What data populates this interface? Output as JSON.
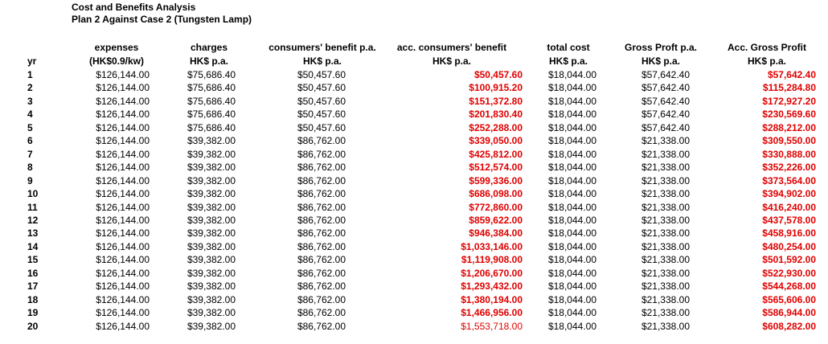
{
  "title": "Cost and Benefits Analysis",
  "subtitle": "Plan 2 Against Case 2 (Tungsten Lamp)",
  "headers": {
    "line1": [
      "",
      "expenses",
      "charges",
      "consumers' benefit p.a.",
      "acc. consumers' benefit",
      "total cost",
      "Gross Proft p.a.",
      "Acc. Gross Profit"
    ],
    "line2": [
      "yr",
      "(HK$0.9/kw)",
      "HK$ p.a.",
      "HK$ p.a.",
      "HK$ p.a.",
      "HK$ p.a.",
      "HK$ p.a.",
      "HK$ p.a."
    ]
  },
  "colors": {
    "highlight": "#e00000",
    "text": "#000000"
  },
  "rows": [
    [
      "1",
      "$126,144.00",
      "$75,686.40",
      "$50,457.60",
      "$50,457.60",
      "$18,044.00",
      "$57,642.40",
      "$57,642.40"
    ],
    [
      "2",
      "$126,144.00",
      "$75,686.40",
      "$50,457.60",
      "$100,915.20",
      "$18,044.00",
      "$57,642.40",
      "$115,284.80"
    ],
    [
      "3",
      "$126,144.00",
      "$75,686.40",
      "$50,457.60",
      "$151,372.80",
      "$18,044.00",
      "$57,642.40",
      "$172,927.20"
    ],
    [
      "4",
      "$126,144.00",
      "$75,686.40",
      "$50,457.60",
      "$201,830.40",
      "$18,044.00",
      "$57,642.40",
      "$230,569.60"
    ],
    [
      "5",
      "$126,144.00",
      "$75,686.40",
      "$50,457.60",
      "$252,288.00",
      "$18,044.00",
      "$57,642.40",
      "$288,212.00"
    ],
    [
      "6",
      "$126,144.00",
      "$39,382.00",
      "$86,762.00",
      "$339,050.00",
      "$18,044.00",
      "$21,338.00",
      "$309,550.00"
    ],
    [
      "7",
      "$126,144.00",
      "$39,382.00",
      "$86,762.00",
      "$425,812.00",
      "$18,044.00",
      "$21,338.00",
      "$330,888.00"
    ],
    [
      "8",
      "$126,144.00",
      "$39,382.00",
      "$86,762.00",
      "$512,574.00",
      "$18,044.00",
      "$21,338.00",
      "$352,226.00"
    ],
    [
      "9",
      "$126,144.00",
      "$39,382.00",
      "$86,762.00",
      "$599,336.00",
      "$18,044.00",
      "$21,338.00",
      "$373,564.00"
    ],
    [
      "10",
      "$126,144.00",
      "$39,382.00",
      "$86,762.00",
      "$686,098.00",
      "$18,044.00",
      "$21,338.00",
      "$394,902.00"
    ],
    [
      "11",
      "$126,144.00",
      "$39,382.00",
      "$86,762.00",
      "$772,860.00",
      "$18,044.00",
      "$21,338.00",
      "$416,240.00"
    ],
    [
      "12",
      "$126,144.00",
      "$39,382.00",
      "$86,762.00",
      "$859,622.00",
      "$18,044.00",
      "$21,338.00",
      "$437,578.00"
    ],
    [
      "13",
      "$126,144.00",
      "$39,382.00",
      "$86,762.00",
      "$946,384.00",
      "$18,044.00",
      "$21,338.00",
      "$458,916.00"
    ],
    [
      "14",
      "$126,144.00",
      "$39,382.00",
      "$86,762.00",
      "$1,033,146.00",
      "$18,044.00",
      "$21,338.00",
      "$480,254.00"
    ],
    [
      "15",
      "$126,144.00",
      "$39,382.00",
      "$86,762.00",
      "$1,119,908.00",
      "$18,044.00",
      "$21,338.00",
      "$501,592.00"
    ],
    [
      "16",
      "$126,144.00",
      "$39,382.00",
      "$86,762.00",
      "$1,206,670.00",
      "$18,044.00",
      "$21,338.00",
      "$522,930.00"
    ],
    [
      "17",
      "$126,144.00",
      "$39,382.00",
      "$86,762.00",
      "$1,293,432.00",
      "$18,044.00",
      "$21,338.00",
      "$544,268.00"
    ],
    [
      "18",
      "$126,144.00",
      "$39,382.00",
      "$86,762.00",
      "$1,380,194.00",
      "$18,044.00",
      "$21,338.00",
      "$565,606.00"
    ],
    [
      "19",
      "$126,144.00",
      "$39,382.00",
      "$86,762.00",
      "$1,466,956.00",
      "$18,044.00",
      "$21,338.00",
      "$586,944.00"
    ],
    [
      "20",
      "$126,144.00",
      "$39,382.00",
      "$86,762.00",
      "$1,553,718.00",
      "$18,044.00",
      "$21,338.00",
      "$608,282.00"
    ]
  ]
}
